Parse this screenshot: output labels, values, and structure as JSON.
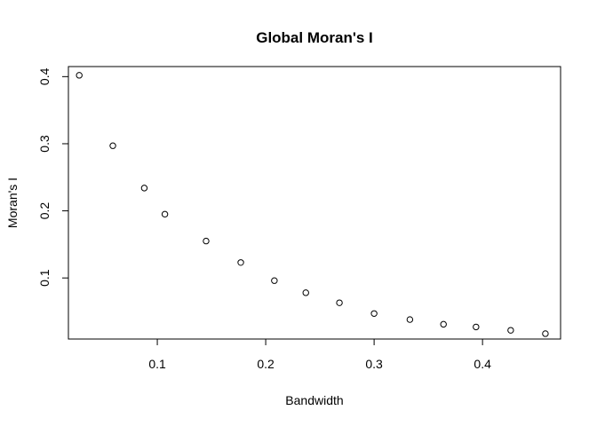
{
  "chart_data": {
    "type": "scatter",
    "title": "Global Moran's I",
    "xlabel": "Bandwidth",
    "ylabel": "Moran's I",
    "xlim": [
      0.018,
      0.472
    ],
    "ylim": [
      0.009,
      0.415
    ],
    "x_ticks": [
      0.1,
      0.2,
      0.3,
      0.4
    ],
    "y_ticks": [
      0.1,
      0.2,
      0.3,
      0.4
    ],
    "x_tick_labels": [
      "0.1",
      "0.2",
      "0.3",
      "0.4"
    ],
    "y_tick_labels": [
      "0.1",
      "0.2",
      "0.3",
      "0.4"
    ],
    "marker": "open-circle",
    "grid": false,
    "legend": "none",
    "points": [
      {
        "x": 0.028,
        "y": 0.402
      },
      {
        "x": 0.059,
        "y": 0.297
      },
      {
        "x": 0.088,
        "y": 0.234
      },
      {
        "x": 0.107,
        "y": 0.195
      },
      {
        "x": 0.145,
        "y": 0.155
      },
      {
        "x": 0.177,
        "y": 0.123
      },
      {
        "x": 0.208,
        "y": 0.096
      },
      {
        "x": 0.237,
        "y": 0.078
      },
      {
        "x": 0.268,
        "y": 0.063
      },
      {
        "x": 0.3,
        "y": 0.047
      },
      {
        "x": 0.333,
        "y": 0.038
      },
      {
        "x": 0.364,
        "y": 0.031
      },
      {
        "x": 0.394,
        "y": 0.027
      },
      {
        "x": 0.426,
        "y": 0.022
      },
      {
        "x": 0.458,
        "y": 0.017
      }
    ]
  }
}
